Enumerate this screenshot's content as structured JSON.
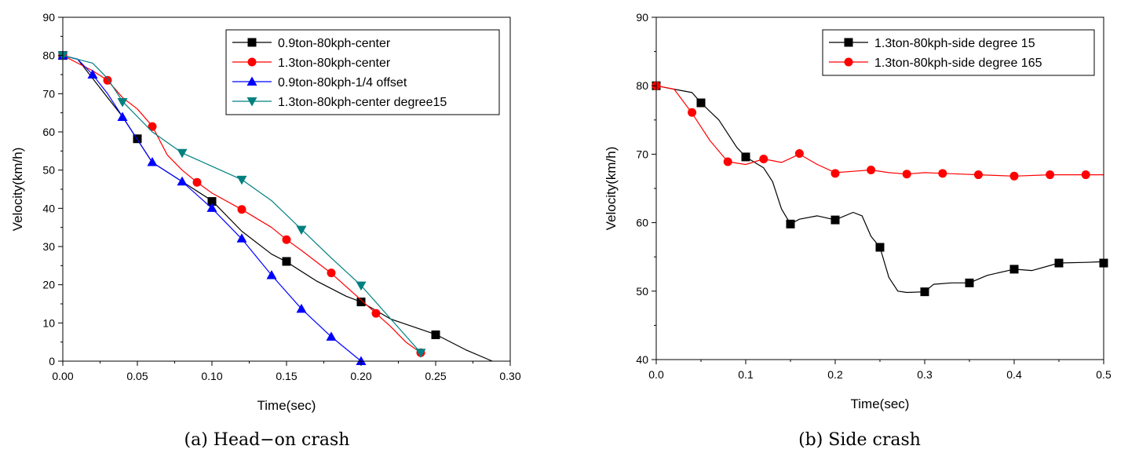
{
  "chart_data": [
    {
      "type": "line",
      "xlabel": "Time(sec)",
      "ylabel": "Velocity(km/h)",
      "caption": "(a) Head−on crash",
      "xlim": [
        0,
        0.3
      ],
      "ylim": [
        0,
        90
      ],
      "xticks": [
        "0.00",
        "0.05",
        "0.10",
        "0.15",
        "0.20",
        "0.25",
        "0.30"
      ],
      "yticks": [
        "0",
        "10",
        "20",
        "30",
        "40",
        "50",
        "60",
        "70",
        "80",
        "90"
      ],
      "legend_position": "top-right",
      "series": [
        {
          "name": "0.9ton-80kph-center",
          "color": "#000000",
          "marker": "square",
          "line": [
            [
              0,
              80
            ],
            [
              0.01,
              79
            ],
            [
              0.02,
              74
            ],
            [
              0.03,
              69
            ],
            [
              0.04,
              64
            ],
            [
              0.05,
              58
            ],
            [
              0.06,
              52
            ],
            [
              0.08,
              47
            ],
            [
              0.1,
              42
            ],
            [
              0.12,
              34
            ],
            [
              0.14,
              28
            ],
            [
              0.15,
              26
            ],
            [
              0.17,
              21
            ],
            [
              0.19,
              17
            ],
            [
              0.2,
              15.5
            ],
            [
              0.22,
              11
            ],
            [
              0.25,
              7
            ],
            [
              0.27,
              3
            ],
            [
              0.288,
              0
            ]
          ],
          "markers": [
            [
              0,
              80
            ],
            [
              0.05,
              58.2
            ],
            [
              0.1,
              41.8
            ],
            [
              0.15,
              26.1
            ],
            [
              0.2,
              15.5
            ],
            [
              0.25,
              6.9
            ]
          ]
        },
        {
          "name": "1.3ton-80kph-center",
          "color": "#ff0000",
          "marker": "circle",
          "line": [
            [
              0,
              80
            ],
            [
              0.01,
              78
            ],
            [
              0.02,
              76
            ],
            [
              0.03,
              73.5
            ],
            [
              0.04,
              69
            ],
            [
              0.05,
              66
            ],
            [
              0.06,
              61.5
            ],
            [
              0.07,
              54
            ],
            [
              0.08,
              50
            ],
            [
              0.09,
              46.8
            ],
            [
              0.1,
              44
            ],
            [
              0.12,
              39.7
            ],
            [
              0.14,
              35
            ],
            [
              0.15,
              31.8
            ],
            [
              0.16,
              29
            ],
            [
              0.18,
              23
            ],
            [
              0.2,
              16
            ],
            [
              0.21,
              12.5
            ],
            [
              0.22,
              9
            ],
            [
              0.23,
              5
            ],
            [
              0.24,
              2.2
            ]
          ],
          "markers": [
            [
              0,
              80
            ],
            [
              0.03,
              73.5
            ],
            [
              0.06,
              61.4
            ],
            [
              0.09,
              46.8
            ],
            [
              0.12,
              39.7
            ],
            [
              0.15,
              31.8
            ],
            [
              0.18,
              23.1
            ],
            [
              0.21,
              12.5
            ],
            [
              0.24,
              2.2
            ]
          ]
        },
        {
          "name": "0.9ton-80kph-1/4 offset",
          "color": "#0000ff",
          "marker": "triangle-up",
          "line": [
            [
              0,
              80
            ],
            [
              0.01,
              79
            ],
            [
              0.02,
              75
            ],
            [
              0.03,
              70
            ],
            [
              0.04,
              64
            ],
            [
              0.05,
              58
            ],
            [
              0.06,
              52
            ],
            [
              0.08,
              47
            ],
            [
              0.1,
              40
            ],
            [
              0.12,
              32
            ],
            [
              0.14,
              22.5
            ],
            [
              0.16,
              13.7
            ],
            [
              0.18,
              6.4
            ],
            [
              0.2,
              0
            ]
          ],
          "markers": [
            [
              0,
              80
            ],
            [
              0.02,
              75
            ],
            [
              0.04,
              63.9
            ],
            [
              0.06,
              52.1
            ],
            [
              0.08,
              47
            ],
            [
              0.1,
              40.1
            ],
            [
              0.12,
              32.1
            ],
            [
              0.14,
              22.5
            ],
            [
              0.16,
              13.7
            ],
            [
              0.18,
              6.4
            ],
            [
              0.2,
              0
            ]
          ]
        },
        {
          "name": "1.3ton-80kph-center degree15",
          "color": "#008080",
          "marker": "triangle-down",
          "line": [
            [
              0,
              80
            ],
            [
              0.02,
              78
            ],
            [
              0.03,
              74
            ],
            [
              0.04,
              68
            ],
            [
              0.06,
              60
            ],
            [
              0.08,
              54.5
            ],
            [
              0.1,
              51
            ],
            [
              0.12,
              47.5
            ],
            [
              0.14,
              42
            ],
            [
              0.16,
              34.5
            ],
            [
              0.18,
              27
            ],
            [
              0.2,
              19.8
            ],
            [
              0.22,
              11
            ],
            [
              0.24,
              2.2
            ]
          ],
          "markers": [
            [
              0,
              80
            ],
            [
              0.04,
              67.8
            ],
            [
              0.08,
              54.5
            ],
            [
              0.12,
              47.5
            ],
            [
              0.16,
              34.4
            ],
            [
              0.2,
              19.8
            ],
            [
              0.24,
              2.2
            ]
          ]
        }
      ]
    },
    {
      "type": "line",
      "xlabel": "Time(sec)",
      "ylabel": "Velocity(km/h)",
      "caption": "(b) Side crash",
      "xlim": [
        0,
        0.5
      ],
      "ylim": [
        40,
        90
      ],
      "xticks": [
        "0.0",
        "0.1",
        "0.2",
        "0.3",
        "0.4",
        "0.5"
      ],
      "yticks": [
        "40",
        "50",
        "60",
        "70",
        "80",
        "90"
      ],
      "legend_position": "top-right",
      "series": [
        {
          "name": "1.3ton-80kph-side degree 15",
          "color": "#000000",
          "marker": "square",
          "line": [
            [
              0,
              80
            ],
            [
              0.02,
              79.5
            ],
            [
              0.04,
              79
            ],
            [
              0.05,
              77.5
            ],
            [
              0.07,
              75
            ],
            [
              0.09,
              71
            ],
            [
              0.1,
              69.6
            ],
            [
              0.12,
              68
            ],
            [
              0.13,
              66
            ],
            [
              0.14,
              62
            ],
            [
              0.15,
              59.8
            ],
            [
              0.16,
              60.5
            ],
            [
              0.18,
              61
            ],
            [
              0.2,
              60.4
            ],
            [
              0.22,
              61.5
            ],
            [
              0.23,
              61
            ],
            [
              0.24,
              58
            ],
            [
              0.25,
              56.4
            ],
            [
              0.26,
              52
            ],
            [
              0.27,
              50
            ],
            [
              0.28,
              49.8
            ],
            [
              0.3,
              49.9
            ],
            [
              0.31,
              51
            ],
            [
              0.33,
              51.2
            ],
            [
              0.35,
              51.2
            ],
            [
              0.37,
              52.3
            ],
            [
              0.4,
              53.2
            ],
            [
              0.42,
              53
            ],
            [
              0.45,
              54.1
            ],
            [
              0.48,
              54.2
            ],
            [
              0.5,
              54.3
            ]
          ],
          "markers": [
            [
              0,
              80
            ],
            [
              0.05,
              77.5
            ],
            [
              0.1,
              69.6
            ],
            [
              0.15,
              59.8
            ],
            [
              0.2,
              60.4
            ],
            [
              0.25,
              56.4
            ],
            [
              0.3,
              49.9
            ],
            [
              0.35,
              51.2
            ],
            [
              0.4,
              53.2
            ],
            [
              0.45,
              54.1
            ],
            [
              0.5,
              54.1
            ]
          ]
        },
        {
          "name": "1.3ton-80kph-side degree 165",
          "color": "#ff0000",
          "marker": "circle",
          "line": [
            [
              0,
              80
            ],
            [
              0.02,
              79.5
            ],
            [
              0.04,
              76
            ],
            [
              0.06,
              72
            ],
            [
              0.08,
              68.9
            ],
            [
              0.1,
              68.5
            ],
            [
              0.12,
              69.3
            ],
            [
              0.14,
              68.8
            ],
            [
              0.16,
              70
            ],
            [
              0.18,
              68.5
            ],
            [
              0.2,
              67.3
            ],
            [
              0.22,
              67.5
            ],
            [
              0.24,
              67.7
            ],
            [
              0.26,
              67.3
            ],
            [
              0.28,
              67.1
            ],
            [
              0.3,
              67.3
            ],
            [
              0.32,
              67.2
            ],
            [
              0.34,
              67.1
            ],
            [
              0.36,
              67
            ],
            [
              0.4,
              66.8
            ],
            [
              0.44,
              67
            ],
            [
              0.48,
              67
            ],
            [
              0.5,
              67
            ]
          ],
          "markers": [
            [
              0,
              80
            ],
            [
              0.04,
              76.1
            ],
            [
              0.08,
              68.9
            ],
            [
              0.12,
              69.3
            ],
            [
              0.16,
              70.1
            ],
            [
              0.2,
              67.2
            ],
            [
              0.24,
              67.7
            ],
            [
              0.28,
              67.1
            ],
            [
              0.32,
              67.2
            ],
            [
              0.36,
              67
            ],
            [
              0.4,
              66.8
            ],
            [
              0.44,
              67
            ],
            [
              0.48,
              67
            ]
          ]
        }
      ]
    }
  ]
}
